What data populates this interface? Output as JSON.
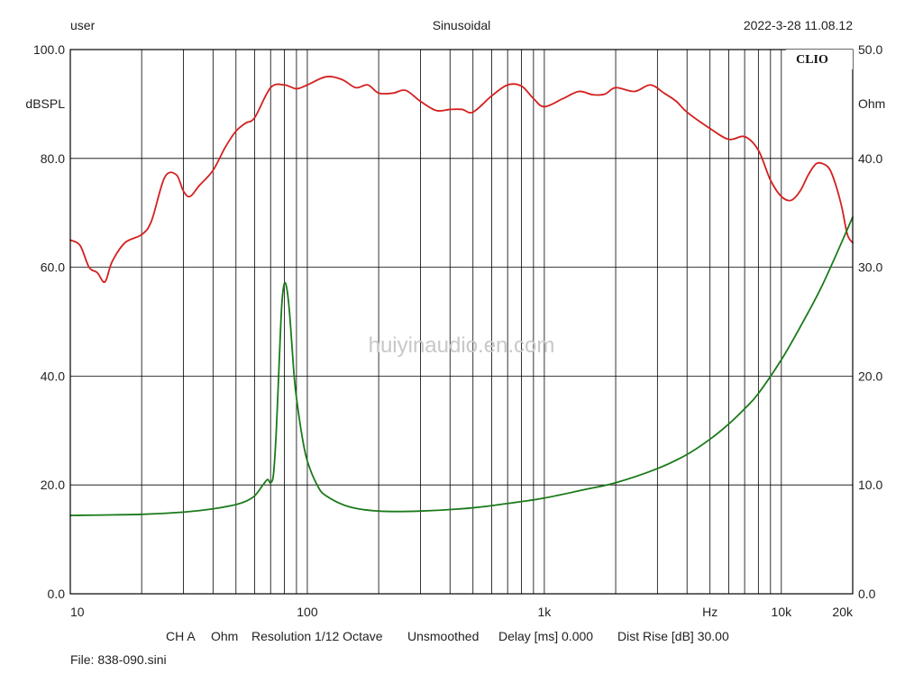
{
  "header": {
    "left": "user",
    "center": "Sinusoidal",
    "right": "2022-3-28 11.08.12"
  },
  "brand": "CLIO",
  "watermark": "huiyinaudio.en.com",
  "footer": {
    "ch": "CH A",
    "unit": "Ohm",
    "resolution": "Resolution 1/12 Octave",
    "smoothing": "Unsmoothed",
    "delay": "Delay [ms] 0.000",
    "dist": "Dist Rise [dB] 30.00",
    "file": "File: 838-090.sini"
  },
  "colors": {
    "spl": "#d42020",
    "impedance": "#1a7a1a",
    "grid": "#000000"
  },
  "chart_data": {
    "type": "line",
    "x_scale": "log",
    "xlim": [
      10,
      20000
    ],
    "x_tick_labels": [
      {
        "value": 10,
        "label": "10"
      },
      {
        "value": 100,
        "label": "100"
      },
      {
        "value": 1000,
        "label": "1k"
      },
      {
        "value": 5000,
        "label": "Hz"
      },
      {
        "value": 10000,
        "label": "10k"
      },
      {
        "value": 20000,
        "label": "20k"
      }
    ],
    "y_left": {
      "label": "dBSPL",
      "lim": [
        0,
        100
      ],
      "ticks": [
        "0.0",
        "20.0",
        "40.0",
        "60.0",
        "80.0",
        "100.0"
      ]
    },
    "y_right": {
      "label": "Ohm",
      "lim": [
        0,
        50
      ],
      "ticks": [
        "0.0",
        "10.0",
        "20.0",
        "30.0",
        "40.0",
        "50.0"
      ]
    },
    "grid": true,
    "series": [
      {
        "axis": "left",
        "color": "#d42020",
        "x": [
          10,
          11,
          12,
          13,
          14,
          15,
          17,
          20,
          22,
          25,
          28,
          30,
          32,
          35,
          40,
          45,
          50,
          55,
          60,
          70,
          80,
          90,
          100,
          120,
          140,
          160,
          180,
          200,
          230,
          260,
          300,
          350,
          400,
          450,
          500,
          600,
          700,
          800,
          900,
          1000,
          1200,
          1400,
          1600,
          1800,
          2000,
          2400,
          2800,
          3200,
          3600,
          4000,
          5000,
          6000,
          7000,
          8000,
          9000,
          10000,
          11000,
          12000,
          13000,
          14000,
          15000,
          16000,
          17000,
          18000,
          19000,
          20000
        ],
        "values": [
          65,
          64,
          60,
          59,
          57.3,
          61,
          64.5,
          66,
          68.5,
          76.5,
          77,
          74,
          73,
          75,
          77.8,
          82,
          85,
          86.5,
          87.5,
          93,
          93.5,
          92.8,
          93.5,
          95,
          94.5,
          93,
          93.5,
          92,
          92,
          92.5,
          90.5,
          88.8,
          89,
          89,
          88.5,
          91.5,
          93.5,
          93.3,
          91,
          89.5,
          91,
          92.3,
          91.7,
          91.8,
          93,
          92.3,
          93.5,
          92,
          90.5,
          88.5,
          85.5,
          83.5,
          84,
          81.5,
          76,
          73,
          72.3,
          74,
          77,
          79,
          79,
          78,
          75,
          71,
          66,
          64.5
        ]
      },
      {
        "axis": "right",
        "color": "#1a7a1a",
        "x": [
          10,
          20,
          30,
          40,
          50,
          55,
          60,
          65,
          68,
          70,
          72,
          74,
          76,
          78,
          80,
          82,
          84,
          86,
          88,
          90,
          95,
          100,
          110,
          120,
          150,
          200,
          300,
          500,
          700,
          1000,
          1500,
          2000,
          3000,
          4000,
          5000,
          6000,
          7000,
          8000,
          10000,
          12000,
          15000,
          20000
        ],
        "values": [
          7.2,
          7.3,
          7.5,
          7.8,
          8.2,
          8.5,
          9,
          10,
          10.5,
          10.2,
          11,
          15,
          21,
          26.5,
          28.5,
          28,
          26,
          23,
          20,
          18,
          14.5,
          12.2,
          10,
          9,
          8,
          7.6,
          7.6,
          7.9,
          8.3,
          8.8,
          9.6,
          10.2,
          11.5,
          12.8,
          14.2,
          15.6,
          17,
          18.4,
          21.5,
          24.5,
          28.5,
          34.6
        ]
      }
    ]
  }
}
